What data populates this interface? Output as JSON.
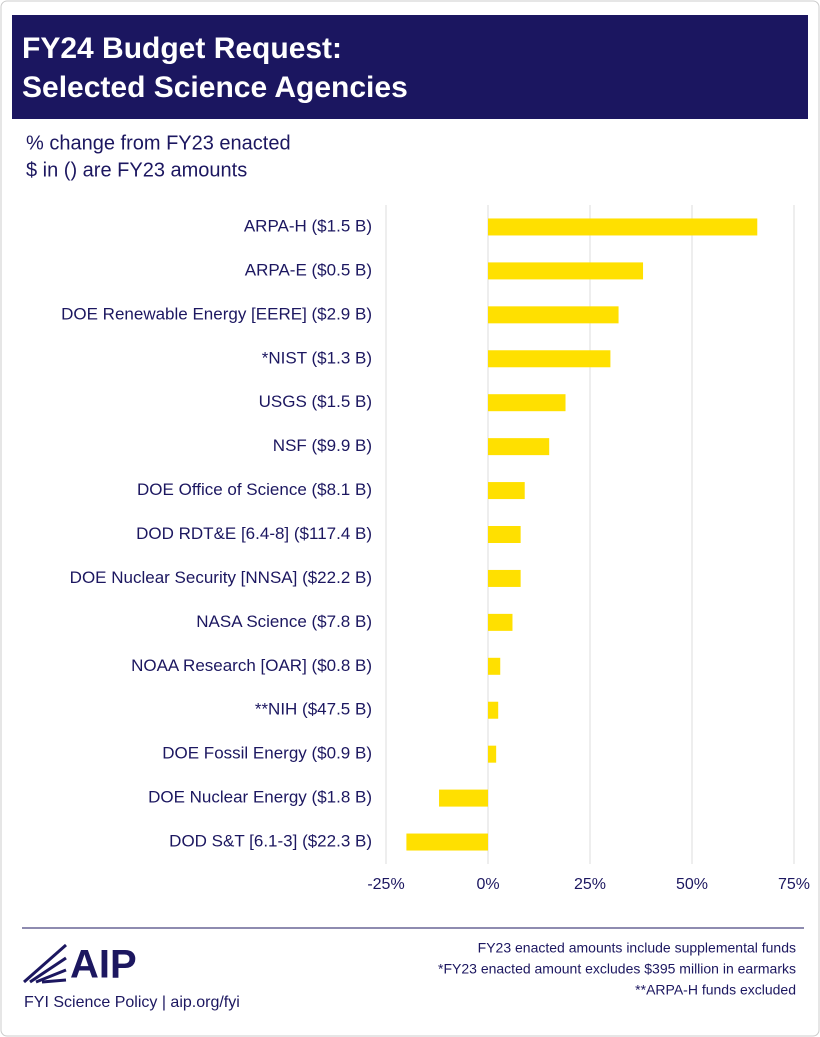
{
  "chart_data": {
    "type": "hbar",
    "title": [
      "FY24 Budget Request:",
      "Selected Science Agencies"
    ],
    "subtitle": [
      "% change from FY23 enacted",
      "$ in () are FY23 amounts"
    ],
    "categories": [
      "ARPA-H ($1.5 B)",
      "ARPA-E ($0.5 B)",
      "DOE Renewable Energy [EERE] ($2.9 B)",
      "*NIST ($1.3 B)",
      "USGS ($1.5 B)",
      "NSF ($9.9 B)",
      "DOE Office of Science ($8.1 B)",
      "DOD RDT&E [6.4-8] ($117.4 B)",
      "DOE Nuclear Security [NNSA] ($22.2 B)",
      "NASA Science ($7.8 B)",
      "NOAA Research [OAR] ($0.8 B)",
      "**NIH ($47.5 B)",
      "DOE Fossil Energy ($0.9 B)",
      "DOE Nuclear Energy ($1.8 B)",
      "DOD S&T [6.1-3] ($22.3 B)"
    ],
    "values": [
      66,
      38,
      32,
      30,
      19,
      15,
      9,
      8,
      8,
      6,
      3,
      2.5,
      2,
      -12,
      -20
    ],
    "color": "#ffe000",
    "xlim": [
      -25,
      75
    ],
    "xticks": [
      {
        "value": -25,
        "label": "-25%"
      },
      {
        "value": 0,
        "label": "0%"
      },
      {
        "value": 25,
        "label": "25%"
      },
      {
        "value": 50,
        "label": "50%"
      },
      {
        "value": 75,
        "label": "75%"
      }
    ],
    "grid": true
  },
  "footer": {
    "logo": "AIP",
    "source": "FYI Science Policy | aip.org/fyi",
    "notes": [
      "FY23 enacted amounts include supplemental funds",
      "*FY23 enacted amount excludes $395 million in earmarks",
      "**ARPA-H funds excluded"
    ]
  }
}
